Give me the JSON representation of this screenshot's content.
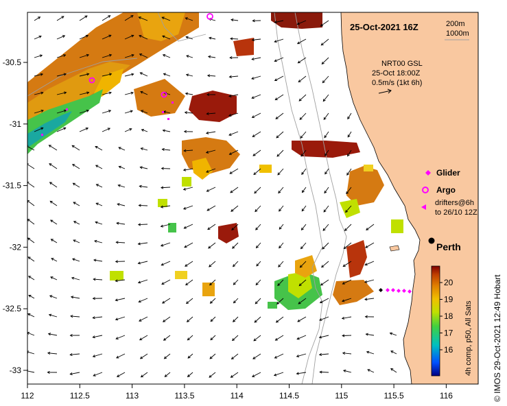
{
  "title": "25-Oct-2021 16Z",
  "legend_isobaths": {
    "line1": "200m",
    "line2": "1000m"
  },
  "current_info": {
    "source": "NRT00 GSL",
    "time": "25-Oct 18:00Z",
    "scale": "0.5m/s (1kt 6h)"
  },
  "markers": {
    "glider": "Glider",
    "argo": "Argo",
    "drifters_line1": "drifters@6h",
    "drifters_line2": "to 26/10 12Z"
  },
  "place": {
    "perth": "Perth"
  },
  "colorbar": {
    "ticks": [
      "16",
      "17",
      "18",
      "19",
      "20"
    ],
    "label": "4h comp, p50, All Sats"
  },
  "credit": "© IMOS 29-Oct-2021 12:49 Hobart",
  "axes": {
    "lon_ticks": [
      "112",
      "112.5",
      "113",
      "113.5",
      "114",
      "114.5",
      "115",
      "115.5",
      "116"
    ],
    "lat_ticks": [
      "-30.5",
      "-31",
      "-31.5",
      "-32",
      "-32.5",
      "-33"
    ]
  },
  "colors": {
    "land": "#f9c8a0",
    "sst_warm": "#d57a12",
    "sst_hot": "#9a1a0b",
    "sst_mid": "#f0b400",
    "sst_cool": "#46c34a",
    "sst_cold": "#1aa8a0",
    "marker": "#ff00ff",
    "perth_dot": "#000000"
  }
}
